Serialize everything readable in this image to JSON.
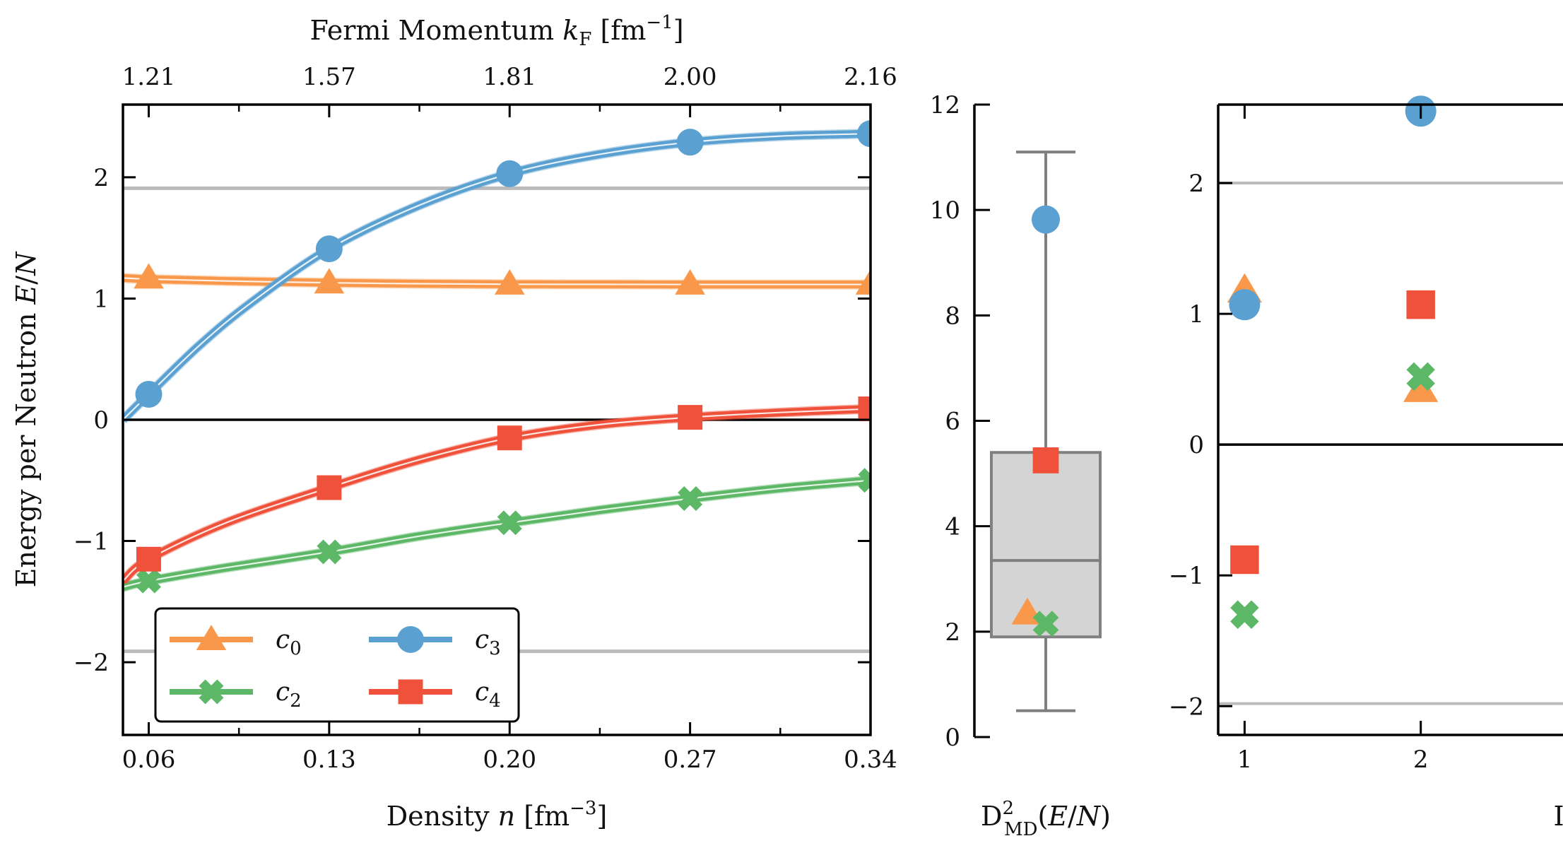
{
  "colors": {
    "c0": "#f9984a",
    "c2": "#5cb766",
    "c3": "#5aa1d2",
    "c4": "#ef513a",
    "refline": "#bbbbbb",
    "box": "#d4d4d4",
    "boxedge": "#808080"
  },
  "chart_data": [
    {
      "type": "line",
      "title": "",
      "xlabel": "Density n [fm⁻³]",
      "ylabel": "Energy per Neutron E/N",
      "top_xlabel": "Fermi Momentum k_F [fm⁻¹]",
      "xlim": [
        0.05,
        0.34
      ],
      "ylim": [
        -2.6,
        2.6
      ],
      "x_ticks": [
        0.06,
        0.13,
        0.2,
        0.27,
        0.34
      ],
      "x_tick_labels": [
        "0.06",
        "0.13",
        "0.20",
        "0.27",
        "0.34"
      ],
      "top_x_tick_labels": [
        "1.21",
        "1.57",
        "1.81",
        "2.00",
        "2.16"
      ],
      "y_ticks": [
        -2,
        -1,
        0,
        1,
        2
      ],
      "y_tick_labels": [
        "−2",
        "−1",
        "0",
        "1",
        "2"
      ],
      "reference_lines": [
        1.91,
        -1.91
      ],
      "zero_line": 0,
      "legend_position": "lower-left",
      "legend": [
        {
          "key": "c0",
          "label": "c",
          "sub": "0"
        },
        {
          "key": "c2",
          "label": "c",
          "sub": "2"
        },
        {
          "key": "c3",
          "label": "c",
          "sub": "3"
        },
        {
          "key": "c4",
          "label": "c",
          "sub": "4"
        }
      ],
      "series": [
        {
          "name": "c0",
          "marker": "triangle",
          "x": [
            0.06,
            0.13,
            0.2,
            0.27,
            0.34
          ],
          "values": [
            1.17,
            1.13,
            1.12,
            1.12,
            1.12
          ],
          "curve_x": [
            0.05,
            0.06,
            0.09,
            0.13,
            0.165,
            0.2,
            0.235,
            0.27,
            0.305,
            0.34
          ],
          "curve_y": [
            1.17,
            1.16,
            1.145,
            1.13,
            1.122,
            1.118,
            1.117,
            1.116,
            1.116,
            1.116
          ]
        },
        {
          "name": "c2",
          "marker": "x",
          "x": [
            0.06,
            0.13,
            0.2,
            0.27,
            0.34
          ],
          "values": [
            -1.33,
            -1.09,
            -0.85,
            -0.65,
            -0.5
          ],
          "curve_x": [
            0.05,
            0.06,
            0.09,
            0.13,
            0.165,
            0.2,
            0.235,
            0.27,
            0.305,
            0.34
          ],
          "curve_y": [
            -1.38,
            -1.33,
            -1.22,
            -1.09,
            -0.96,
            -0.85,
            -0.745,
            -0.65,
            -0.565,
            -0.5
          ]
        },
        {
          "name": "c3",
          "marker": "circle",
          "x": [
            0.06,
            0.13,
            0.2,
            0.27,
            0.34
          ],
          "values": [
            0.21,
            1.41,
            2.03,
            2.29,
            2.36
          ],
          "curve_x": [
            0.05,
            0.06,
            0.08,
            0.1,
            0.13,
            0.165,
            0.2,
            0.235,
            0.27,
            0.305,
            0.34
          ],
          "curve_y": [
            0.0,
            0.21,
            0.62,
            0.97,
            1.41,
            1.77,
            2.03,
            2.19,
            2.29,
            2.34,
            2.36
          ]
        },
        {
          "name": "c4",
          "marker": "square",
          "x": [
            0.06,
            0.13,
            0.2,
            0.27,
            0.34
          ],
          "values": [
            -1.15,
            -0.56,
            -0.15,
            0.02,
            0.09
          ],
          "curve_x": [
            0.05,
            0.06,
            0.09,
            0.13,
            0.165,
            0.2,
            0.235,
            0.27,
            0.305,
            0.34
          ],
          "curve_y": [
            -1.33,
            -1.15,
            -0.85,
            -0.56,
            -0.33,
            -0.15,
            -0.04,
            0.02,
            0.06,
            0.09
          ]
        }
      ]
    },
    {
      "type": "box",
      "xlabel": "D²_MD(E/N)",
      "ylim": [
        0,
        12
      ],
      "y_ticks": [
        0,
        2,
        4,
        6,
        8,
        10,
        12
      ],
      "y_tick_labels": [
        "0",
        "2",
        "4",
        "6",
        "8",
        "10",
        "12"
      ],
      "box": {
        "whisker_low": 0.5,
        "q1": 1.9,
        "median": 3.35,
        "q3": 5.4,
        "whisker_high": 11.1
      },
      "points": [
        {
          "key": "c3",
          "marker": "circle",
          "value": 9.82
        },
        {
          "key": "c4",
          "marker": "square",
          "value": 5.25
        },
        {
          "key": "c0",
          "marker": "triangle",
          "value": 2.35
        },
        {
          "key": "c2",
          "marker": "x",
          "value": 2.15
        }
      ]
    },
    {
      "type": "scatter",
      "xlabel": "I",
      "xlim": [
        0.85,
        3.0
      ],
      "ylim": [
        -2.22,
        2.6
      ],
      "x_ticks": [
        1,
        2
      ],
      "x_tick_labels": [
        "1",
        "2"
      ],
      "y_ticks": [
        -2,
        -1,
        0,
        1,
        2
      ],
      "y_tick_labels": [
        "−2",
        "−1",
        "0",
        "1",
        "2"
      ],
      "reference_lines": [
        2.0,
        -1.98
      ],
      "zero_line": 0,
      "series": [
        {
          "name": "c0",
          "marker": "triangle",
          "x": [
            1,
            2
          ],
          "values": [
            1.18,
            0.42
          ]
        },
        {
          "name": "c2",
          "marker": "x",
          "x": [
            1,
            2
          ],
          "values": [
            -1.3,
            0.52
          ]
        },
        {
          "name": "c3",
          "marker": "circle",
          "x": [
            1,
            2
          ],
          "values": [
            1.07,
            2.55
          ]
        },
        {
          "name": "c4",
          "marker": "square",
          "x": [
            1,
            2
          ],
          "values": [
            -0.88,
            1.07
          ]
        }
      ]
    }
  ]
}
